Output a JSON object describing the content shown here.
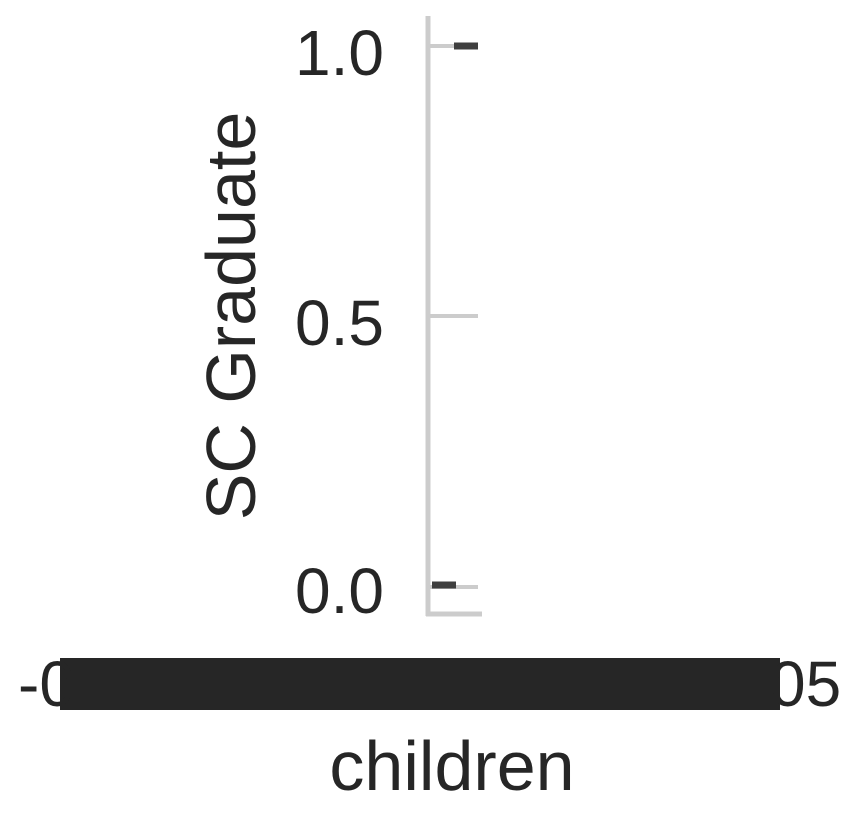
{
  "chart_data": {
    "type": "scatter",
    "title": "",
    "xlabel": "children",
    "ylabel": "SC Graduate",
    "ylim": [
      -0.05,
      1.05
    ],
    "y_ticks": [
      {
        "value": 0.0,
        "label": "0.0"
      },
      {
        "value": 0.5,
        "label": "0.5"
      },
      {
        "value": 1.0,
        "label": "1.0"
      }
    ],
    "x_tick_labels_overlapping": "-0.05 … 0.05 (many overlapping tick labels, illegible)",
    "series": [
      {
        "points": [
          {
            "x": 0.0,
            "y": 1.0
          },
          {
            "x": 0.0,
            "y": 0.0
          }
        ]
      }
    ],
    "grid": false,
    "colors": {
      "axis": "#cccccc",
      "text": "#262626",
      "marks": "#3f3f3f"
    }
  }
}
